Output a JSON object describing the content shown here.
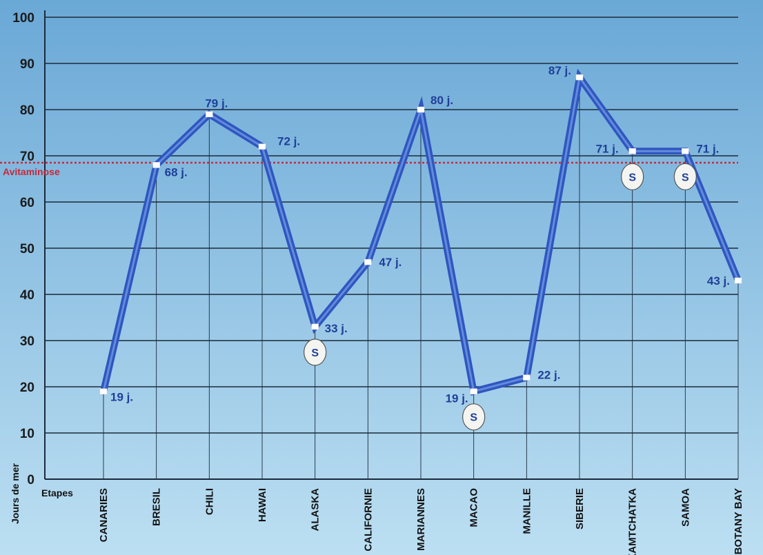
{
  "chart_data": {
    "type": "line",
    "categories": [
      "CANARIES",
      "BRESIL",
      "CHILI",
      "HAWAI",
      "ALASKA",
      "CALIFORNIE",
      "MARIANNES",
      "MACAO",
      "MANILLE",
      "SIBERIE",
      "KAMTCHATKA",
      "SAMOA",
      "BOTANY BAY"
    ],
    "values": [
      19,
      68,
      79,
      72,
      33,
      47,
      80,
      19,
      22,
      87,
      71,
      71,
      43
    ],
    "data_labels": [
      "19 j.",
      "68 j.",
      "79 j.",
      "72 j.",
      "33 j.",
      "47 j.",
      "80 j.",
      "19 j.",
      "22 j.",
      "87 j.",
      "71 j.",
      "71 j.",
      "43 j."
    ],
    "s_markers": [
      "ALASKA",
      "MACAO",
      "KAMTCHATKA",
      "SAMOA"
    ],
    "s_marker_text": "S",
    "ylabel": "Jours de mer",
    "xlabel": "Etapes",
    "ylim": [
      0,
      100
    ],
    "yticks": [
      0,
      10,
      20,
      30,
      40,
      50,
      60,
      70,
      80,
      90,
      100
    ],
    "reference_line": {
      "label": "Avitaminose",
      "value": 68.5
    },
    "grid": true,
    "colors": {
      "line": "#2f56c0",
      "line_highlight": "#6f9ae2",
      "labels": "#1f3f98",
      "background_top": "#6aa8d6",
      "background_bottom": "#bcdff2",
      "grid": "#1b2a3a",
      "reference": "#c8283a"
    }
  }
}
